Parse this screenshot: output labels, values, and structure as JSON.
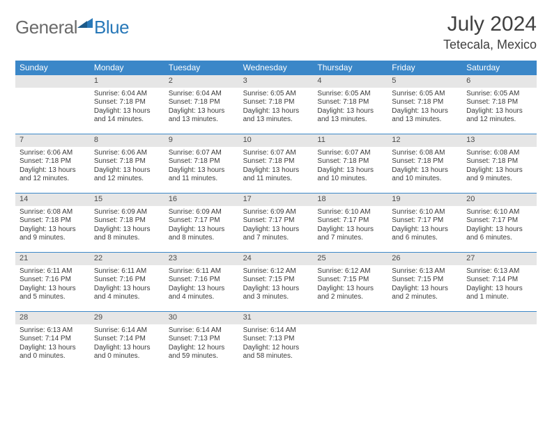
{
  "brand": {
    "part1": "General",
    "part2": "Blue"
  },
  "title": "July 2024",
  "location": "Tetecala, Mexico",
  "colors": {
    "header_bg": "#3b87c8",
    "header_text": "#ffffff",
    "date_bg": "#e6e6e6",
    "rule": "#3b87c8",
    "body_text": "#3a3a3a"
  },
  "dayNames": [
    "Sunday",
    "Monday",
    "Tuesday",
    "Wednesday",
    "Thursday",
    "Friday",
    "Saturday"
  ],
  "startOffset": 1,
  "days": [
    {
      "n": 1,
      "sunrise": "6:04 AM",
      "sunset": "7:18 PM",
      "dl": "13 hours and 14 minutes."
    },
    {
      "n": 2,
      "sunrise": "6:04 AM",
      "sunset": "7:18 PM",
      "dl": "13 hours and 13 minutes."
    },
    {
      "n": 3,
      "sunrise": "6:05 AM",
      "sunset": "7:18 PM",
      "dl": "13 hours and 13 minutes."
    },
    {
      "n": 4,
      "sunrise": "6:05 AM",
      "sunset": "7:18 PM",
      "dl": "13 hours and 13 minutes."
    },
    {
      "n": 5,
      "sunrise": "6:05 AM",
      "sunset": "7:18 PM",
      "dl": "13 hours and 13 minutes."
    },
    {
      "n": 6,
      "sunrise": "6:05 AM",
      "sunset": "7:18 PM",
      "dl": "13 hours and 12 minutes."
    },
    {
      "n": 7,
      "sunrise": "6:06 AM",
      "sunset": "7:18 PM",
      "dl": "13 hours and 12 minutes."
    },
    {
      "n": 8,
      "sunrise": "6:06 AM",
      "sunset": "7:18 PM",
      "dl": "13 hours and 12 minutes."
    },
    {
      "n": 9,
      "sunrise": "6:07 AM",
      "sunset": "7:18 PM",
      "dl": "13 hours and 11 minutes."
    },
    {
      "n": 10,
      "sunrise": "6:07 AM",
      "sunset": "7:18 PM",
      "dl": "13 hours and 11 minutes."
    },
    {
      "n": 11,
      "sunrise": "6:07 AM",
      "sunset": "7:18 PM",
      "dl": "13 hours and 10 minutes."
    },
    {
      "n": 12,
      "sunrise": "6:08 AM",
      "sunset": "7:18 PM",
      "dl": "13 hours and 10 minutes."
    },
    {
      "n": 13,
      "sunrise": "6:08 AM",
      "sunset": "7:18 PM",
      "dl": "13 hours and 9 minutes."
    },
    {
      "n": 14,
      "sunrise": "6:08 AM",
      "sunset": "7:18 PM",
      "dl": "13 hours and 9 minutes."
    },
    {
      "n": 15,
      "sunrise": "6:09 AM",
      "sunset": "7:18 PM",
      "dl": "13 hours and 8 minutes."
    },
    {
      "n": 16,
      "sunrise": "6:09 AM",
      "sunset": "7:17 PM",
      "dl": "13 hours and 8 minutes."
    },
    {
      "n": 17,
      "sunrise": "6:09 AM",
      "sunset": "7:17 PM",
      "dl": "13 hours and 7 minutes."
    },
    {
      "n": 18,
      "sunrise": "6:10 AM",
      "sunset": "7:17 PM",
      "dl": "13 hours and 7 minutes."
    },
    {
      "n": 19,
      "sunrise": "6:10 AM",
      "sunset": "7:17 PM",
      "dl": "13 hours and 6 minutes."
    },
    {
      "n": 20,
      "sunrise": "6:10 AM",
      "sunset": "7:17 PM",
      "dl": "13 hours and 6 minutes."
    },
    {
      "n": 21,
      "sunrise": "6:11 AM",
      "sunset": "7:16 PM",
      "dl": "13 hours and 5 minutes."
    },
    {
      "n": 22,
      "sunrise": "6:11 AM",
      "sunset": "7:16 PM",
      "dl": "13 hours and 4 minutes."
    },
    {
      "n": 23,
      "sunrise": "6:11 AM",
      "sunset": "7:16 PM",
      "dl": "13 hours and 4 minutes."
    },
    {
      "n": 24,
      "sunrise": "6:12 AM",
      "sunset": "7:15 PM",
      "dl": "13 hours and 3 minutes."
    },
    {
      "n": 25,
      "sunrise": "6:12 AM",
      "sunset": "7:15 PM",
      "dl": "13 hours and 2 minutes."
    },
    {
      "n": 26,
      "sunrise": "6:13 AM",
      "sunset": "7:15 PM",
      "dl": "13 hours and 2 minutes."
    },
    {
      "n": 27,
      "sunrise": "6:13 AM",
      "sunset": "7:14 PM",
      "dl": "13 hours and 1 minute."
    },
    {
      "n": 28,
      "sunrise": "6:13 AM",
      "sunset": "7:14 PM",
      "dl": "13 hours and 0 minutes."
    },
    {
      "n": 29,
      "sunrise": "6:14 AM",
      "sunset": "7:14 PM",
      "dl": "13 hours and 0 minutes."
    },
    {
      "n": 30,
      "sunrise": "6:14 AM",
      "sunset": "7:13 PM",
      "dl": "12 hours and 59 minutes."
    },
    {
      "n": 31,
      "sunrise": "6:14 AM",
      "sunset": "7:13 PM",
      "dl": "12 hours and 58 minutes."
    }
  ],
  "labels": {
    "sunrise": "Sunrise: ",
    "sunset": "Sunset: ",
    "daylight": "Daylight: "
  }
}
